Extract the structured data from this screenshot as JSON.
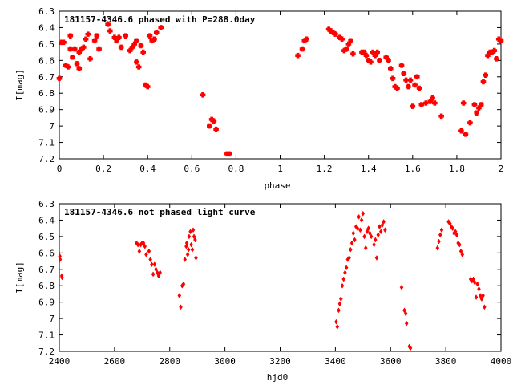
{
  "chart_data": [
    {
      "type": "scatter",
      "title": "181157-4346.6 phased with P=288.0day",
      "xlabel": "phase",
      "ylabel": "I[mag]",
      "xlim": [
        0,
        2
      ],
      "ylim": [
        6.3,
        7.2
      ],
      "y_inverted": true,
      "x_ticks": [
        "0",
        "0.2",
        "0.4",
        "0.6",
        "0.8",
        "1",
        "1.2",
        "1.4",
        "1.6",
        "1.8",
        "2"
      ],
      "y_ticks": [
        "6.3",
        "6.4",
        "6.5",
        "6.6",
        "6.7",
        "6.8",
        "6.9",
        "7",
        "7.1",
        "7.2"
      ],
      "marker": "cross",
      "color": "#ff0000",
      "points": [
        [
          0.0,
          6.71
        ],
        [
          0.01,
          6.49
        ],
        [
          0.02,
          6.49
        ],
        [
          0.03,
          6.63
        ],
        [
          0.04,
          6.64
        ],
        [
          0.05,
          6.53
        ],
        [
          0.05,
          6.45
        ],
        [
          0.06,
          6.58
        ],
        [
          0.07,
          6.53
        ],
        [
          0.08,
          6.62
        ],
        [
          0.09,
          6.55
        ],
        [
          0.09,
          6.65
        ],
        [
          0.1,
          6.53
        ],
        [
          0.11,
          6.52
        ],
        [
          0.12,
          6.47
        ],
        [
          0.13,
          6.44
        ],
        [
          0.14,
          6.59
        ],
        [
          0.16,
          6.48
        ],
        [
          0.17,
          6.45
        ],
        [
          0.18,
          6.53
        ],
        [
          0.22,
          6.38
        ],
        [
          0.23,
          6.42
        ],
        [
          0.25,
          6.46
        ],
        [
          0.26,
          6.48
        ],
        [
          0.27,
          6.46
        ],
        [
          0.28,
          6.52
        ],
        [
          0.3,
          6.45
        ],
        [
          0.32,
          6.54
        ],
        [
          0.33,
          6.52
        ],
        [
          0.34,
          6.5
        ],
        [
          0.35,
          6.48
        ],
        [
          0.35,
          6.61
        ],
        [
          0.36,
          6.64
        ],
        [
          0.37,
          6.51
        ],
        [
          0.38,
          6.55
        ],
        [
          0.39,
          6.75
        ],
        [
          0.4,
          6.76
        ],
        [
          0.41,
          6.45
        ],
        [
          0.42,
          6.48
        ],
        [
          0.43,
          6.47
        ],
        [
          0.44,
          6.43
        ],
        [
          0.46,
          6.4
        ],
        [
          0.65,
          6.81
        ],
        [
          0.68,
          7.0
        ],
        [
          0.69,
          6.96
        ],
        [
          0.7,
          6.97
        ],
        [
          0.71,
          7.02
        ],
        [
          0.76,
          7.17
        ],
        [
          0.77,
          7.17
        ],
        [
          1.08,
          6.57
        ],
        [
          1.1,
          6.53
        ],
        [
          1.11,
          6.48
        ],
        [
          1.12,
          6.47
        ],
        [
          1.22,
          6.41
        ],
        [
          1.23,
          6.42
        ],
        [
          1.24,
          6.43
        ],
        [
          1.25,
          6.44
        ],
        [
          1.27,
          6.46
        ],
        [
          1.28,
          6.47
        ],
        [
          1.29,
          6.54
        ],
        [
          1.3,
          6.53
        ],
        [
          1.31,
          6.5
        ],
        [
          1.32,
          6.48
        ],
        [
          1.33,
          6.56
        ],
        [
          1.37,
          6.55
        ],
        [
          1.38,
          6.55
        ],
        [
          1.39,
          6.57
        ],
        [
          1.4,
          6.6
        ],
        [
          1.41,
          6.61
        ],
        [
          1.42,
          6.55
        ],
        [
          1.43,
          6.57
        ],
        [
          1.44,
          6.55
        ],
        [
          1.45,
          6.6
        ],
        [
          1.48,
          6.58
        ],
        [
          1.49,
          6.6
        ],
        [
          1.5,
          6.65
        ],
        [
          1.51,
          6.71
        ],
        [
          1.52,
          6.76
        ],
        [
          1.53,
          6.77
        ],
        [
          1.55,
          6.63
        ],
        [
          1.56,
          6.68
        ],
        [
          1.57,
          6.72
        ],
        [
          1.58,
          6.76
        ],
        [
          1.59,
          6.72
        ],
        [
          1.6,
          6.88
        ],
        [
          1.61,
          6.75
        ],
        [
          1.62,
          6.7
        ],
        [
          1.63,
          6.77
        ],
        [
          1.64,
          6.87
        ],
        [
          1.66,
          6.86
        ],
        [
          1.68,
          6.85
        ],
        [
          1.69,
          6.83
        ],
        [
          1.7,
          6.86
        ],
        [
          1.73,
          6.94
        ],
        [
          1.82,
          7.03
        ],
        [
          1.83,
          6.86
        ],
        [
          1.84,
          7.05
        ],
        [
          1.86,
          6.98
        ],
        [
          1.88,
          6.87
        ],
        [
          1.89,
          6.92
        ],
        [
          1.9,
          6.89
        ],
        [
          1.91,
          6.87
        ],
        [
          1.92,
          6.73
        ],
        [
          1.93,
          6.69
        ],
        [
          1.94,
          6.57
        ],
        [
          1.95,
          6.55
        ],
        [
          1.96,
          6.55
        ],
        [
          1.97,
          6.54
        ],
        [
          1.98,
          6.59
        ],
        [
          1.99,
          6.47
        ],
        [
          2.0,
          6.48
        ]
      ]
    },
    {
      "type": "scatter",
      "title": "181157-4346.6 not phased light curve",
      "xlabel": "hjd0",
      "ylabel": "I[mag]",
      "xlim": [
        2400,
        4000
      ],
      "ylim": [
        6.3,
        7.2
      ],
      "y_inverted": true,
      "x_ticks": [
        "2400",
        "2600",
        "2800",
        "3000",
        "3200",
        "3400",
        "3600",
        "3800",
        "4000"
      ],
      "y_ticks": [
        "6.3",
        "6.4",
        "6.5",
        "6.6",
        "6.7",
        "6.8",
        "6.9",
        "7",
        "7.1",
        "7.2"
      ],
      "marker": "diamond",
      "color": "#ff0000",
      "points": [
        [
          2402,
          6.62
        ],
        [
          2403,
          6.64
        ],
        [
          2409,
          6.74
        ],
        [
          2410,
          6.75
        ],
        [
          2680,
          6.54
        ],
        [
          2685,
          6.55
        ],
        [
          2690,
          6.59
        ],
        [
          2695,
          6.55
        ],
        [
          2700,
          6.54
        ],
        [
          2705,
          6.54
        ],
        [
          2710,
          6.56
        ],
        [
          2715,
          6.61
        ],
        [
          2725,
          6.59
        ],
        [
          2730,
          6.64
        ],
        [
          2735,
          6.67
        ],
        [
          2740,
          6.73
        ],
        [
          2745,
          6.67
        ],
        [
          2750,
          6.7
        ],
        [
          2755,
          6.72
        ],
        [
          2760,
          6.74
        ],
        [
          2765,
          6.72
        ],
        [
          2835,
          6.86
        ],
        [
          2840,
          6.93
        ],
        [
          2845,
          6.8
        ],
        [
          2850,
          6.79
        ],
        [
          2855,
          6.64
        ],
        [
          2860,
          6.56
        ],
        [
          2862,
          6.54
        ],
        [
          2865,
          6.61
        ],
        [
          2868,
          6.58
        ],
        [
          2870,
          6.5
        ],
        [
          2875,
          6.47
        ],
        [
          2878,
          6.55
        ],
        [
          2882,
          6.58
        ],
        [
          2885,
          6.46
        ],
        [
          2888,
          6.5
        ],
        [
          2892,
          6.52
        ],
        [
          2895,
          6.63
        ],
        [
          3403,
          7.02
        ],
        [
          3407,
          7.05
        ],
        [
          3412,
          6.95
        ],
        [
          3416,
          6.91
        ],
        [
          3420,
          6.88
        ],
        [
          3425,
          6.8
        ],
        [
          3430,
          6.76
        ],
        [
          3435,
          6.72
        ],
        [
          3440,
          6.69
        ],
        [
          3445,
          6.64
        ],
        [
          3450,
          6.63
        ],
        [
          3455,
          6.58
        ],
        [
          3460,
          6.54
        ],
        [
          3465,
          6.48
        ],
        [
          3470,
          6.52
        ],
        [
          3475,
          6.44
        ],
        [
          3480,
          6.45
        ],
        [
          3485,
          6.38
        ],
        [
          3490,
          6.46
        ],
        [
          3495,
          6.4
        ],
        [
          3500,
          6.36
        ],
        [
          3505,
          6.5
        ],
        [
          3510,
          6.57
        ],
        [
          3515,
          6.47
        ],
        [
          3520,
          6.45
        ],
        [
          3525,
          6.48
        ],
        [
          3530,
          6.5
        ],
        [
          3540,
          6.55
        ],
        [
          3545,
          6.52
        ],
        [
          3550,
          6.63
        ],
        [
          3555,
          6.49
        ],
        [
          3560,
          6.44
        ],
        [
          3565,
          6.47
        ],
        [
          3570,
          6.43
        ],
        [
          3575,
          6.41
        ],
        [
          3580,
          6.46
        ],
        [
          3640,
          6.81
        ],
        [
          3650,
          6.95
        ],
        [
          3655,
          6.97
        ],
        [
          3658,
          7.03
        ],
        [
          3668,
          7.17
        ],
        [
          3672,
          7.18
        ],
        [
          3770,
          6.57
        ],
        [
          3775,
          6.53
        ],
        [
          3780,
          6.49
        ],
        [
          3785,
          6.46
        ],
        [
          3810,
          6.41
        ],
        [
          3815,
          6.42
        ],
        [
          3820,
          6.44
        ],
        [
          3825,
          6.45
        ],
        [
          3830,
          6.48
        ],
        [
          3835,
          6.47
        ],
        [
          3840,
          6.49
        ],
        [
          3845,
          6.54
        ],
        [
          3850,
          6.55
        ],
        [
          3855,
          6.59
        ],
        [
          3860,
          6.61
        ],
        [
          3890,
          6.76
        ],
        [
          3895,
          6.77
        ],
        [
          3900,
          6.76
        ],
        [
          3905,
          6.78
        ],
        [
          3910,
          6.87
        ],
        [
          3915,
          6.79
        ],
        [
          3920,
          6.82
        ],
        [
          3925,
          6.86
        ],
        [
          3930,
          6.88
        ],
        [
          3935,
          6.86
        ],
        [
          3940,
          6.93
        ]
      ]
    }
  ]
}
